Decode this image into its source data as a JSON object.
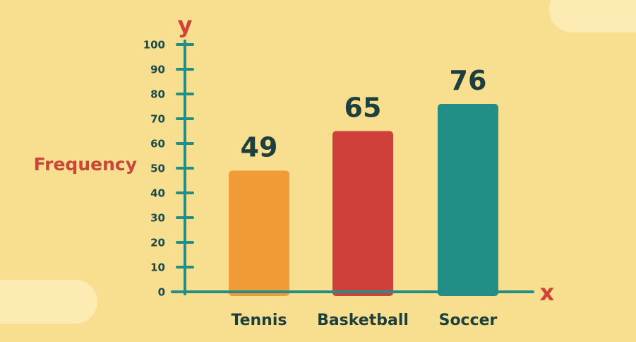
{
  "chart_data": {
    "type": "bar",
    "categories": [
      "Tennis",
      "Basketball",
      "Soccer"
    ],
    "values": [
      49,
      65,
      76
    ],
    "colors": [
      "#f09a38",
      "#cf403b",
      "#238e86"
    ],
    "title": "",
    "xlabel": "x",
    "ylabel": "Frequency",
    "y_axis_letter": "y",
    "ylim": [
      0,
      100
    ],
    "yticks": [
      0,
      10,
      20,
      30,
      40,
      50,
      60,
      70,
      80,
      90,
      100
    ],
    "grid": false,
    "axis_color": "#238e86"
  }
}
